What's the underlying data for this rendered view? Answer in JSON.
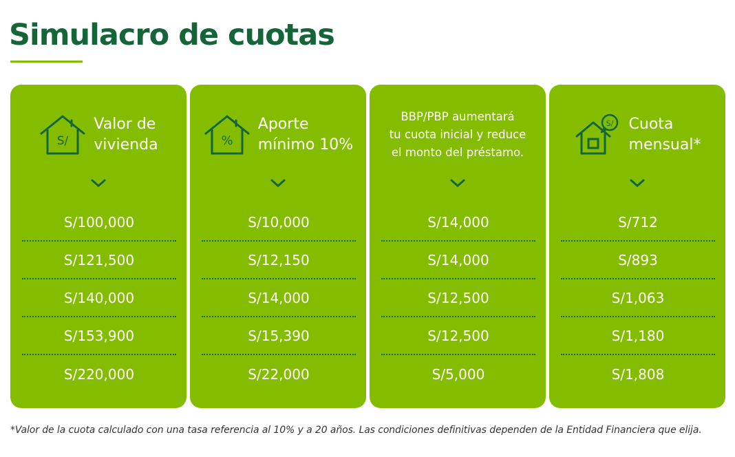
{
  "title": "Simulacro de cuotas",
  "colors": {
    "brand_dark_green": "#15643a",
    "card_green": "#84bd00",
    "text_white": "#ffffff"
  },
  "cards": [
    {
      "icon": "house-soles-icon",
      "label": "Valor de\nvivienda",
      "values": [
        "S/100,000",
        "S/121,500",
        "S/140,000",
        "S/153,900",
        "S/220,000"
      ]
    },
    {
      "icon": "house-percent-icon",
      "label": "Aporte\nmínimo 10%",
      "values": [
        "S/10,000",
        "S/12,150",
        "S/14,000",
        "S/15,390",
        "S/22,000"
      ]
    },
    {
      "icon": "",
      "label": "BBP/PBP aumentará\ntu cuota inicial y reduce\nel monto del préstamo.",
      "values": [
        "S/14,000",
        "S/14,000",
        "S/12,500",
        "S/12,500",
        "S/5,000"
      ]
    },
    {
      "icon": "house-coin-icon",
      "label": "Cuota\nmensual*",
      "values": [
        "S/712",
        "S/893",
        "S/1,063",
        "S/1,180",
        "S/1,808"
      ]
    }
  ],
  "footnote": "*Valor de la cuota calculado con una tasa referencia al 10% y a 20 años. Las condiciones definitivas dependen de la Entidad Financiera que elija."
}
